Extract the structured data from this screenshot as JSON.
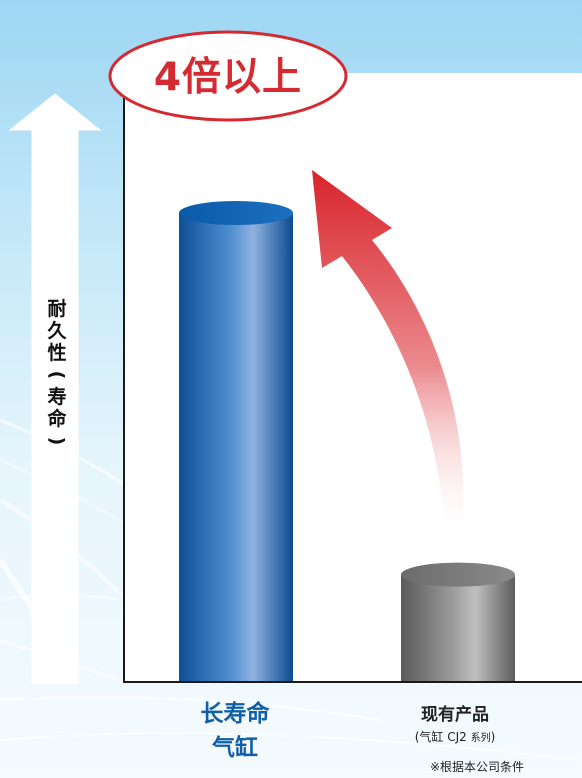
{
  "badge": {
    "text": "4倍以上"
  },
  "y_axis_label": {
    "chars": [
      "耐",
      "久",
      "性",
      "(",
      "寿",
      "命",
      ")"
    ]
  },
  "footnote": "※根据本公司条件",
  "colors": {
    "badge": "#d52a32",
    "bar_long_life": "#1e64ad",
    "bar_existing": "#7c7c7c",
    "arrow": "#d8242b",
    "category_long_life": "#0f5fa8"
  },
  "chart_data": {
    "type": "bar",
    "title": "",
    "xlabel": "",
    "ylabel": "耐久性(寿命)",
    "categories": [
      "长寿命气缸",
      "现有产品"
    ],
    "category_labels": [
      {
        "line1": "长寿命",
        "line2": "气缸"
      },
      {
        "line1": "现有产品",
        "line2": "(气缸 CJ2 ",
        "line2_small": "系列",
        "line2_end": ")"
      }
    ],
    "values": [
      4.4,
      1.0
    ],
    "ylim": [
      0,
      5.5
    ],
    "grid": false,
    "legend": "none",
    "annotation": "4倍以上"
  }
}
